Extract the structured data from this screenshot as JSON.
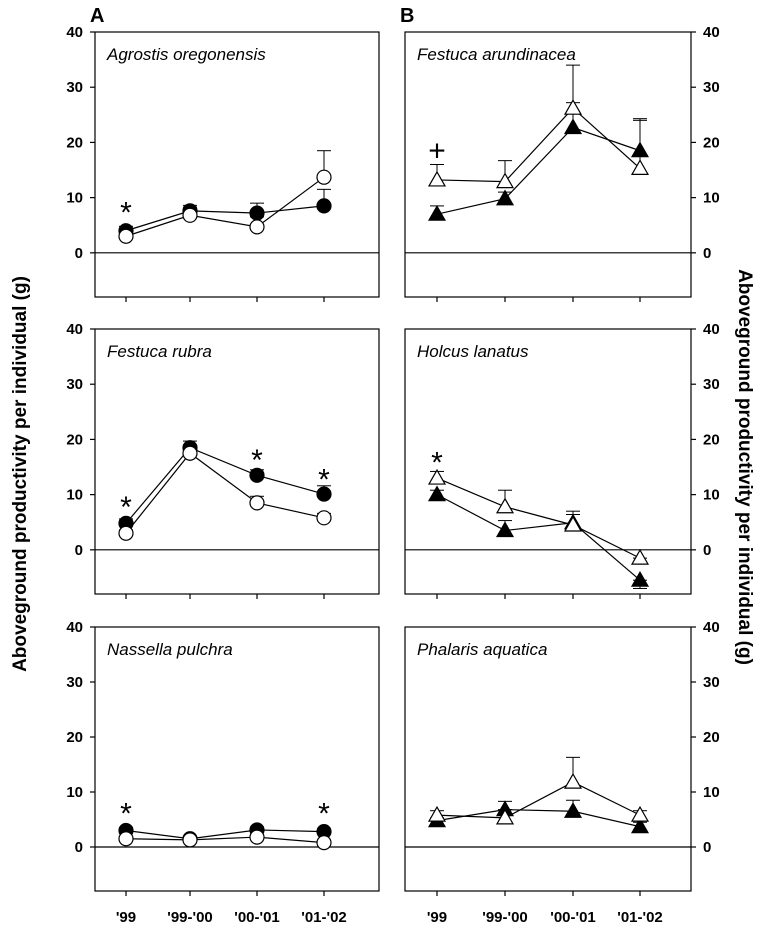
{
  "figure": {
    "panel_letters": [
      "A",
      "B"
    ],
    "ylabel_left": "Aboveground productivity per individual (g)",
    "ylabel_right": "Aboveground productivity per individual (g)"
  },
  "chart_data": [
    {
      "type": "line",
      "panel": "A",
      "title": "Agrostis oregonensis",
      "categories": [
        "'99",
        "'99-'00",
        "'00-'01",
        "'01-'02"
      ],
      "yticks": [
        0,
        10,
        20,
        30,
        40
      ],
      "ylim": [
        -8,
        40
      ],
      "zero_line": true,
      "series": [
        {
          "marker": "filled-circle",
          "values": [
            4.0,
            7.6,
            7.2,
            8.5
          ],
          "err": [
            0.8,
            1.0,
            1.8,
            3.0
          ]
        },
        {
          "marker": "open-circle",
          "values": [
            3.0,
            6.8,
            4.7,
            13.7
          ],
          "err": [
            0.6,
            1.5,
            1.8,
            4.8
          ]
        }
      ],
      "annotations": [
        {
          "text": "*",
          "category": "'99",
          "y": 8.0
        }
      ]
    },
    {
      "type": "line",
      "panel": "B",
      "title": "Festuca arundinacea",
      "categories": [
        "'99",
        "'99-'00",
        "'00-'01",
        "'01-'02"
      ],
      "yticks": [
        0,
        10,
        20,
        30,
        40
      ],
      "ylim": [
        -8,
        40
      ],
      "zero_line": true,
      "series": [
        {
          "marker": "filled-triangle",
          "values": [
            7.0,
            9.8,
            22.7,
            18.5
          ],
          "err": [
            1.5,
            1.2,
            4.5,
            5.5
          ]
        },
        {
          "marker": "open-triangle",
          "values": [
            13.2,
            12.9,
            26.2,
            15.3
          ],
          "err": [
            2.8,
            3.8,
            7.8,
            9.0
          ]
        }
      ],
      "annotations": [
        {
          "text": "+",
          "category": "'99",
          "y": 18.5
        }
      ]
    },
    {
      "type": "line",
      "panel": "A",
      "title": "Festuca rubra",
      "categories": [
        "'99",
        "'99-'00",
        "'00-'01",
        "'01-'02"
      ],
      "yticks": [
        0,
        10,
        20,
        30,
        40
      ],
      "ylim": [
        -8,
        40
      ],
      "zero_line": true,
      "series": [
        {
          "marker": "filled-circle",
          "values": [
            4.8,
            18.5,
            13.5,
            10.1
          ],
          "err": [
            0.8,
            1.2,
            1.0,
            1.5
          ]
        },
        {
          "marker": "open-circle",
          "values": [
            3.0,
            17.5,
            8.5,
            5.8
          ],
          "err": [
            0.6,
            1.5,
            1.2,
            0.8
          ]
        }
      ],
      "annotations": [
        {
          "text": "*",
          "category": "'99",
          "y": 8.5
        },
        {
          "text": "*",
          "category": "'00-'01",
          "y": 17.0
        },
        {
          "text": "*",
          "category": "'01-'02",
          "y": 13.5
        }
      ]
    },
    {
      "type": "line",
      "panel": "B",
      "title": "Holcus lanatus",
      "categories": [
        "'99",
        "'99-'00",
        "'00-'01",
        "'01-'02"
      ],
      "yticks": [
        0,
        10,
        20,
        30,
        40
      ],
      "ylim": [
        -8,
        40
      ],
      "zero_line": true,
      "series": [
        {
          "marker": "filled-triangle",
          "values": [
            10.0,
            3.5,
            4.9,
            -5.5
          ],
          "err": [
            0.8,
            1.8,
            1.5,
            1.5
          ]
        },
        {
          "marker": "open-triangle",
          "values": [
            13.0,
            7.8,
            4.5,
            -1.5
          ],
          "err": [
            1.2,
            3.0,
            2.5,
            0.8
          ]
        }
      ],
      "annotations": [
        {
          "text": "*",
          "category": "'99",
          "y": 16.5
        }
      ]
    },
    {
      "type": "line",
      "panel": "A",
      "title": "Nassella pulchra",
      "categories": [
        "'99",
        "'99-'00",
        "'00-'01",
        "'01-'02"
      ],
      "yticks": [
        0,
        10,
        20,
        30,
        40
      ],
      "ylim": [
        -8,
        40
      ],
      "zero_line": true,
      "series": [
        {
          "marker": "filled-circle",
          "values": [
            3.0,
            1.5,
            3.1,
            2.8
          ],
          "err": [
            0.4,
            0.4,
            0.5,
            0.5
          ]
        },
        {
          "marker": "open-circle",
          "values": [
            1.5,
            1.3,
            1.8,
            0.8
          ],
          "err": [
            0.3,
            0.3,
            1.5,
            0.3
          ]
        }
      ],
      "annotations": [
        {
          "text": "*",
          "category": "'99",
          "y": 6.8
        },
        {
          "text": "*",
          "category": "'01-'02",
          "y": 6.8
        }
      ]
    },
    {
      "type": "line",
      "panel": "B",
      "title": "Phalaris aquatica",
      "categories": [
        "'99",
        "'99-'00",
        "'00-'01",
        "'01-'02"
      ],
      "yticks": [
        0,
        10,
        20,
        30,
        40
      ],
      "ylim": [
        -8,
        40
      ],
      "zero_line": true,
      "series": [
        {
          "marker": "filled-triangle",
          "values": [
            4.8,
            6.8,
            6.5,
            3.7
          ],
          "err": [
            0.5,
            1.5,
            2.0,
            0.8
          ]
        },
        {
          "marker": "open-triangle",
          "values": [
            5.8,
            5.3,
            11.8,
            5.8
          ],
          "err": [
            0.8,
            1.5,
            4.5,
            0.8
          ]
        }
      ]
    }
  ]
}
